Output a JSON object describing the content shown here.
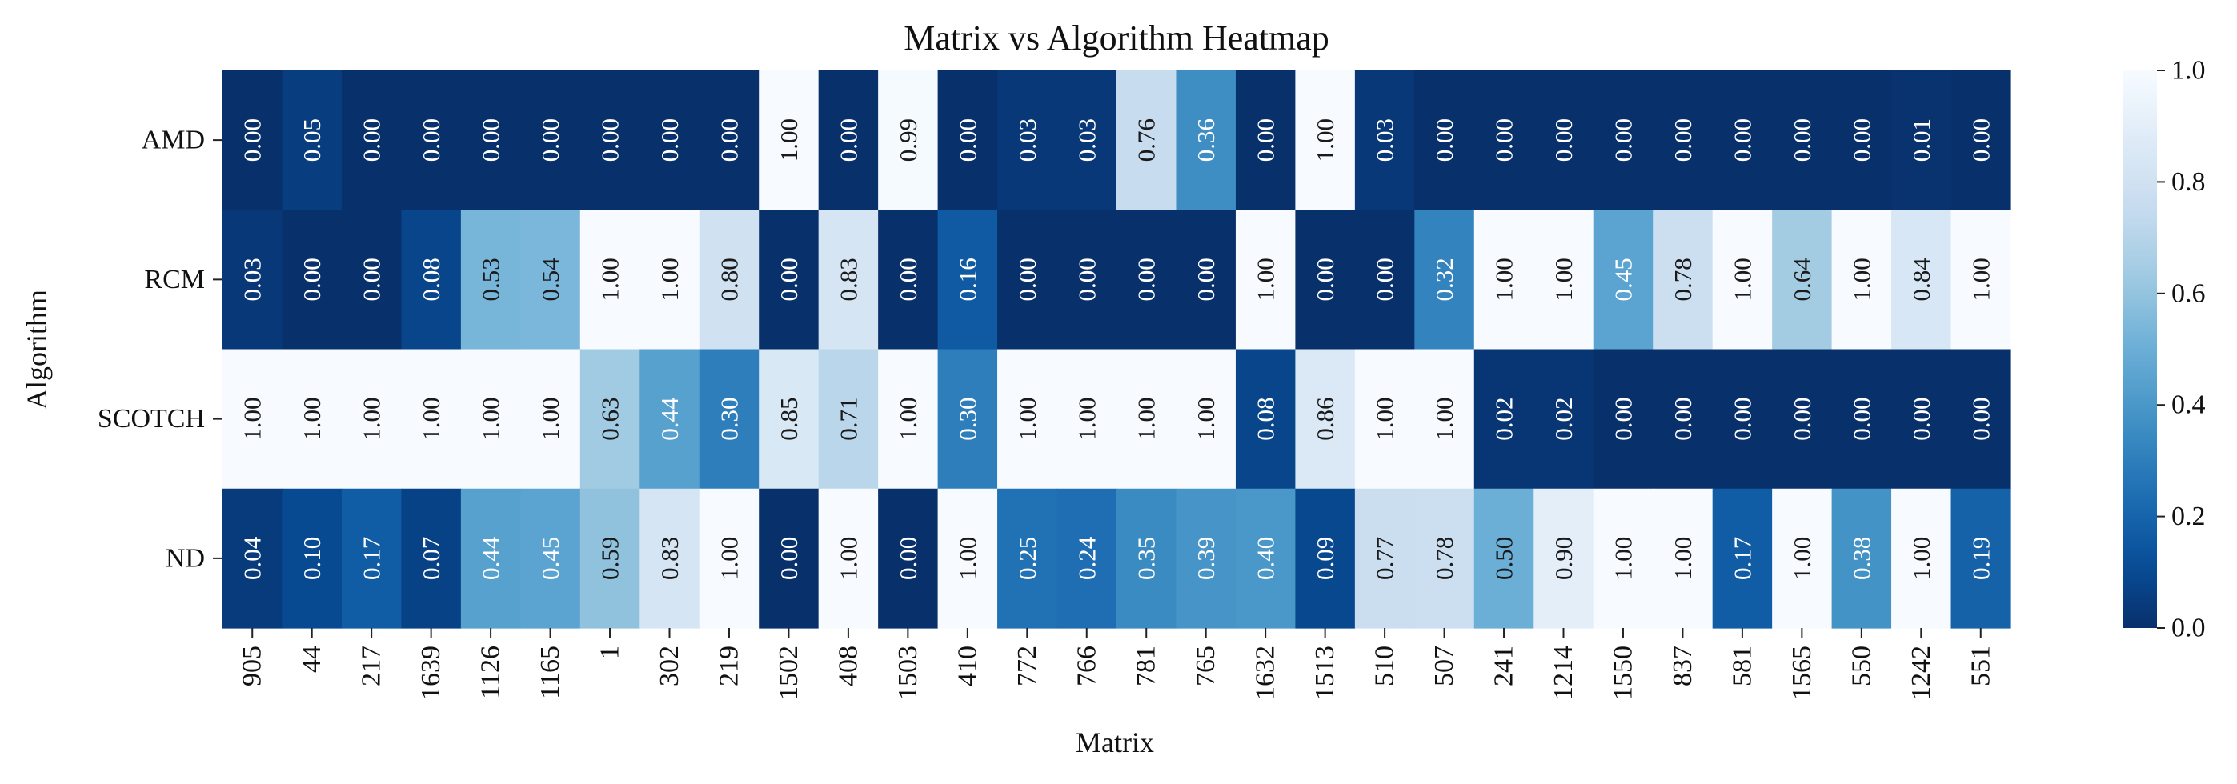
{
  "chart_data": {
    "type": "heatmap",
    "title": "Matrix vs Algorithm Heatmap",
    "xlabel": "Matrix",
    "ylabel": "Algorithm",
    "x_categories": [
      "905",
      "44",
      "217",
      "1639",
      "1126",
      "1165",
      "1",
      "302",
      "219",
      "1502",
      "408",
      "1503",
      "410",
      "772",
      "766",
      "781",
      "765",
      "1632",
      "1513",
      "510",
      "507",
      "241",
      "1214",
      "1550",
      "837",
      "581",
      "1565",
      "550",
      "1242",
      "551"
    ],
    "y_categories": [
      "AMD",
      "RCM",
      "SCOTCH",
      "ND"
    ],
    "values": [
      [
        0.0,
        0.05,
        0.0,
        0.0,
        0.0,
        0.0,
        0.0,
        0.0,
        0.0,
        1.0,
        0.0,
        0.99,
        0.0,
        0.03,
        0.03,
        0.76,
        0.36,
        0.0,
        1.0,
        0.03,
        0.0,
        0.0,
        0.0,
        0.0,
        0.0,
        0.0,
        0.0,
        0.0,
        0.01,
        0.0
      ],
      [
        0.03,
        0.0,
        0.0,
        0.08,
        0.53,
        0.54,
        1.0,
        1.0,
        0.8,
        0.0,
        0.83,
        0.0,
        0.16,
        0.0,
        0.0,
        0.0,
        0.0,
        1.0,
        0.0,
        0.0,
        0.32,
        1.0,
        1.0,
        0.45,
        0.78,
        1.0,
        0.64,
        1.0,
        0.84,
        1.0
      ],
      [
        1.0,
        1.0,
        1.0,
        1.0,
        1.0,
        1.0,
        0.63,
        0.44,
        0.3,
        0.85,
        0.71,
        1.0,
        0.3,
        1.0,
        1.0,
        1.0,
        1.0,
        0.08,
        0.86,
        1.0,
        1.0,
        0.02,
        0.02,
        0.0,
        0.0,
        0.0,
        0.0,
        0.0,
        0.0,
        0.0
      ],
      [
        0.04,
        0.1,
        0.17,
        0.07,
        0.44,
        0.45,
        0.59,
        0.83,
        1.0,
        0.0,
        1.0,
        0.0,
        1.0,
        0.25,
        0.24,
        0.35,
        0.39,
        0.4,
        0.09,
        0.77,
        0.78,
        0.5,
        0.9,
        1.0,
        1.0,
        0.17,
        1.0,
        0.38,
        1.0,
        0.19
      ]
    ],
    "value_format": "0.00",
    "colormap": "Blues_r",
    "vmin": 0.0,
    "vmax": 1.0,
    "colorbar_ticks": [
      "0.0",
      "0.2",
      "0.4",
      "0.6",
      "0.8",
      "1.0"
    ],
    "grid": false
  }
}
